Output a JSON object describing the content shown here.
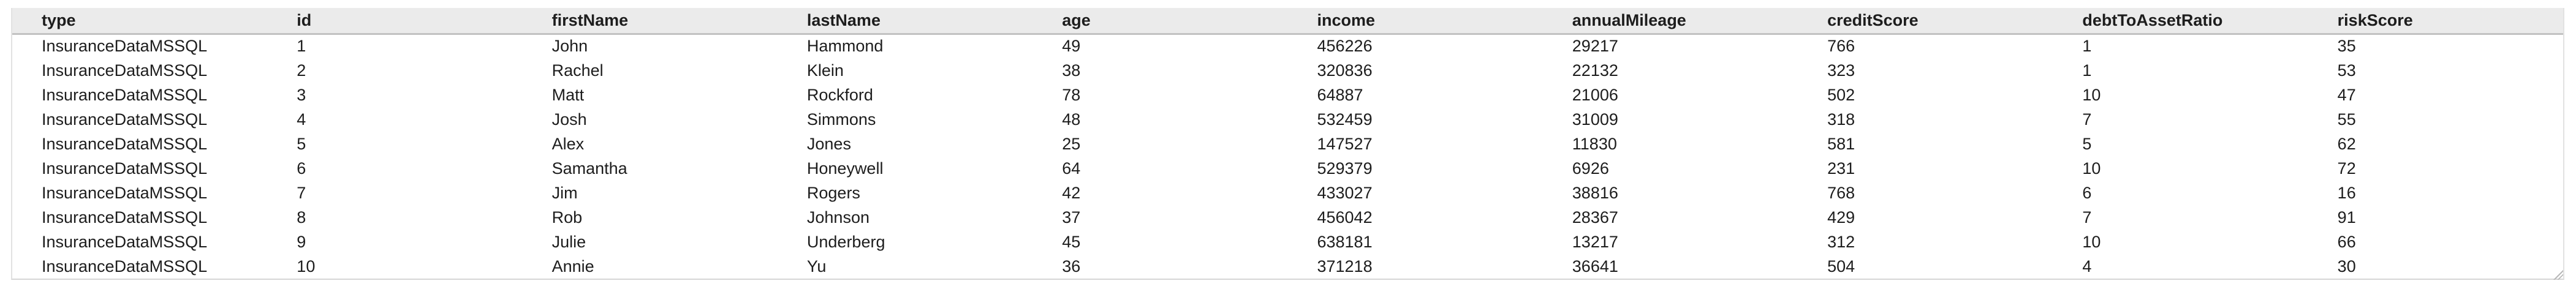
{
  "table": {
    "name": "insurance-results-table",
    "columns": [
      {
        "key": "type",
        "label": "type"
      },
      {
        "key": "id",
        "label": "id"
      },
      {
        "key": "firstName",
        "label": "firstName"
      },
      {
        "key": "lastName",
        "label": "lastName"
      },
      {
        "key": "age",
        "label": "age"
      },
      {
        "key": "income",
        "label": "income"
      },
      {
        "key": "annualMileage",
        "label": "annualMileage"
      },
      {
        "key": "creditScore",
        "label": "creditScore"
      },
      {
        "key": "debtToAssetRatio",
        "label": "debtToAssetRatio"
      },
      {
        "key": "riskScore",
        "label": "riskScore"
      }
    ],
    "rows": [
      {
        "type": "InsuranceDataMSSQL",
        "id": "1",
        "firstName": "John",
        "lastName": "Hammond",
        "age": "49",
        "income": "456226",
        "annualMileage": "29217",
        "creditScore": "766",
        "debtToAssetRatio": "1",
        "riskScore": "35"
      },
      {
        "type": "InsuranceDataMSSQL",
        "id": "2",
        "firstName": "Rachel",
        "lastName": "Klein",
        "age": "38",
        "income": "320836",
        "annualMileage": "22132",
        "creditScore": "323",
        "debtToAssetRatio": "1",
        "riskScore": "53"
      },
      {
        "type": "InsuranceDataMSSQL",
        "id": "3",
        "firstName": "Matt",
        "lastName": "Rockford",
        "age": "78",
        "income": "64887",
        "annualMileage": "21006",
        "creditScore": "502",
        "debtToAssetRatio": "10",
        "riskScore": "47"
      },
      {
        "type": "InsuranceDataMSSQL",
        "id": "4",
        "firstName": "Josh",
        "lastName": "Simmons",
        "age": "48",
        "income": "532459",
        "annualMileage": "31009",
        "creditScore": "318",
        "debtToAssetRatio": "7",
        "riskScore": "55"
      },
      {
        "type": "InsuranceDataMSSQL",
        "id": "5",
        "firstName": "Alex",
        "lastName": "Jones",
        "age": "25",
        "income": "147527",
        "annualMileage": "11830",
        "creditScore": "581",
        "debtToAssetRatio": "5",
        "riskScore": "62"
      },
      {
        "type": "InsuranceDataMSSQL",
        "id": "6",
        "firstName": "Samantha",
        "lastName": "Honeywell",
        "age": "64",
        "income": "529379",
        "annualMileage": "6926",
        "creditScore": "231",
        "debtToAssetRatio": "10",
        "riskScore": "72"
      },
      {
        "type": "InsuranceDataMSSQL",
        "id": "7",
        "firstName": "Jim",
        "lastName": "Rogers",
        "age": "42",
        "income": "433027",
        "annualMileage": "38816",
        "creditScore": "768",
        "debtToAssetRatio": "6",
        "riskScore": "16"
      },
      {
        "type": "InsuranceDataMSSQL",
        "id": "8",
        "firstName": "Rob",
        "lastName": "Johnson",
        "age": "37",
        "income": "456042",
        "annualMileage": "28367",
        "creditScore": "429",
        "debtToAssetRatio": "7",
        "riskScore": "91"
      },
      {
        "type": "InsuranceDataMSSQL",
        "id": "9",
        "firstName": "Julie",
        "lastName": "Underberg",
        "age": "45",
        "income": "638181",
        "annualMileage": "13217",
        "creditScore": "312",
        "debtToAssetRatio": "10",
        "riskScore": "66"
      },
      {
        "type": "InsuranceDataMSSQL",
        "id": "10",
        "firstName": "Annie",
        "lastName": "Yu",
        "age": "36",
        "income": "371218",
        "annualMileage": "36641",
        "creditScore": "504",
        "debtToAssetRatio": "4",
        "riskScore": "30"
      }
    ]
  },
  "colors": {
    "header_background": "#ebebeb",
    "header_rule": "#c2c2c2",
    "table_border": "#e2e2e2",
    "bottom_border": "#d6d6d6",
    "text": "#1d1d1d",
    "page_background": "#ffffff"
  }
}
